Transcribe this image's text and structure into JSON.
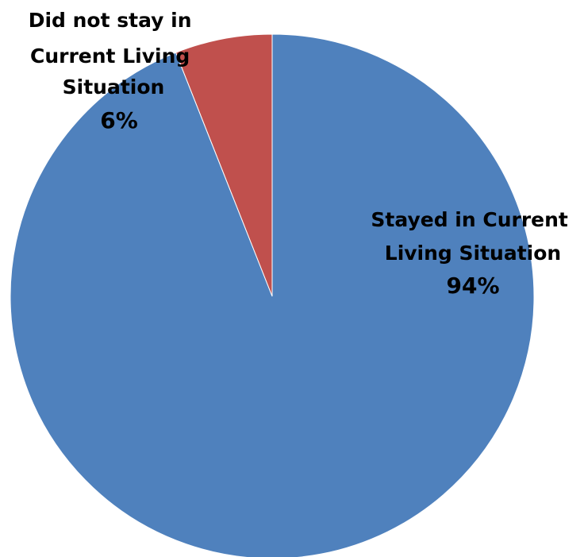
{
  "chart_data": {
    "type": "pie",
    "title": "",
    "slices": [
      {
        "label_lines": [
          "Did not stay in",
          "Current Living",
          "Situation"
        ],
        "percent_label": "6%",
        "value": 6,
        "color": "#C0504D"
      },
      {
        "label_lines": [
          "Stayed in Current",
          "Living Situation"
        ],
        "percent_label": "94%",
        "value": 94,
        "color": "#4F81BD"
      }
    ],
    "start_angle_deg": 0,
    "direction": "counterclockwise",
    "legend": "none"
  }
}
